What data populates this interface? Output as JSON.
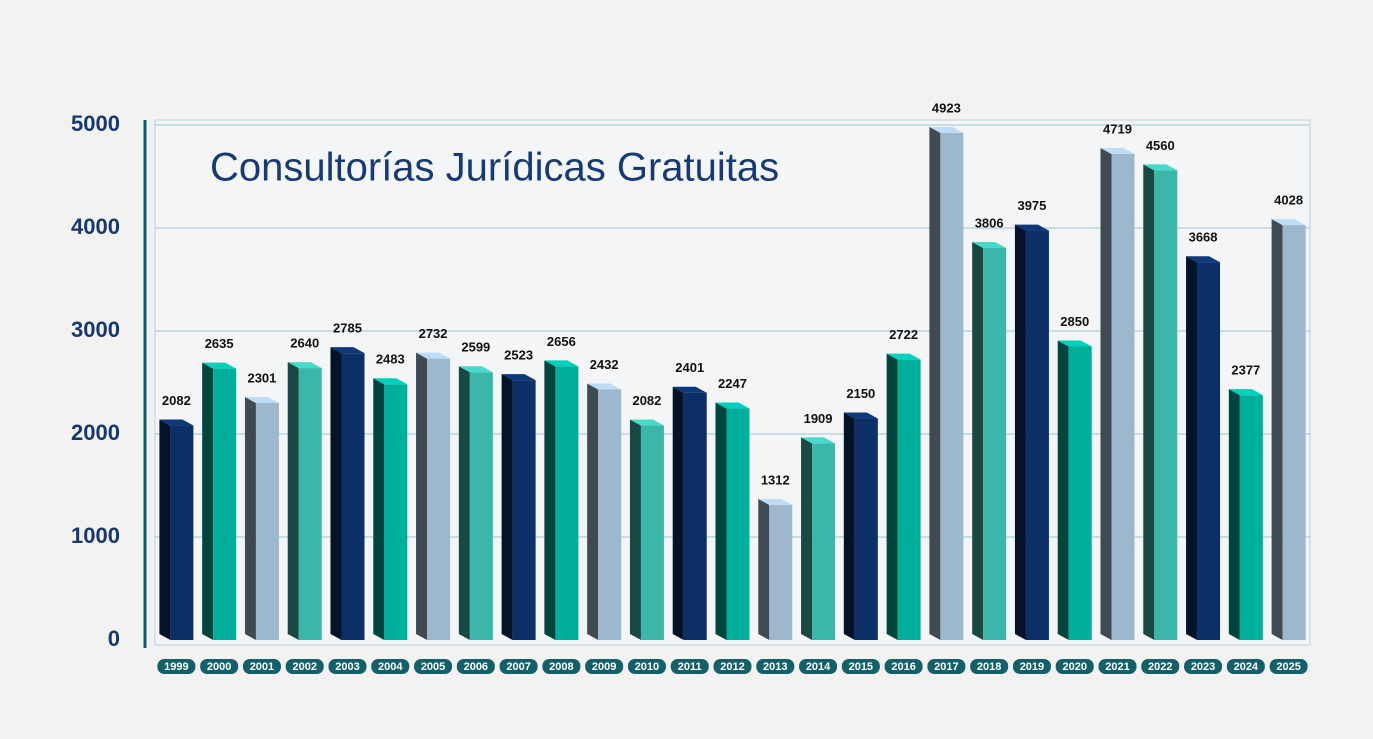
{
  "chart_data": {
    "type": "bar",
    "title": "Consultorías Jurídicas Gratuitas",
    "categories": [
      "1999",
      "2000",
      "2001",
      "2002",
      "2003",
      "2004",
      "2005",
      "2006",
      "2007",
      "2008",
      "2009",
      "2010",
      "2011",
      "2012",
      "2013",
      "2014",
      "2015",
      "2016",
      "2017",
      "2018",
      "2019",
      "2020",
      "2021",
      "2022",
      "2023",
      "2024",
      "2025"
    ],
    "values": [
      2082,
      2635,
      2301,
      2640,
      2785,
      2483,
      2732,
      2599,
      2523,
      2656,
      2432,
      2082,
      2401,
      2247,
      1312,
      1909,
      2150,
      2722,
      4923,
      3806,
      3975,
      2850,
      4719,
      4560,
      3668,
      2377,
      4028
    ],
    "colors": [
      "#0b2f66",
      "#00ae9c",
      "#9db8cc",
      "#3bb6a8"
    ],
    "ylim": [
      0,
      5000
    ],
    "yticks": [
      0,
      1000,
      2000,
      3000,
      4000,
      5000
    ],
    "grid": true
  }
}
